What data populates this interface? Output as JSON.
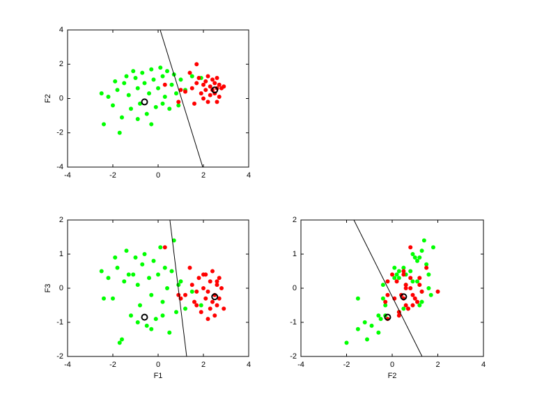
{
  "chart_data": [
    {
      "type": "scatter",
      "ylabel": "F2",
      "xlim": [
        -4,
        4
      ],
      "ylim": [
        -4,
        4
      ],
      "xticks": [
        -4,
        -2,
        0,
        2,
        4
      ],
      "yticks": [
        -4,
        -2,
        0,
        2,
        4
      ],
      "series": [
        {
          "color": "#00ff00",
          "marker": "dot",
          "x": [
            -2.5,
            -2.2,
            -2.0,
            -1.8,
            -1.6,
            -1.5,
            -1.3,
            -1.2,
            -1.0,
            -0.9,
            -0.8,
            -0.7,
            -0.6,
            -0.5,
            -0.4,
            -0.3,
            -0.2,
            -0.1,
            0.0,
            0.1,
            0.2,
            0.3,
            0.4,
            0.5,
            0.6,
            0.7,
            0.8,
            1.0,
            1.2,
            1.5,
            -2.4,
            -1.7,
            -1.1,
            -0.3,
            0.2,
            -1.9,
            -0.9,
            0.9,
            1.9,
            -1.4
          ],
          "values": [
            0.3,
            0.1,
            -0.4,
            0.5,
            -1.1,
            0.9,
            0.2,
            -0.6,
            1.2,
            0.6,
            -0.3,
            1.5,
            0.9,
            -0.9,
            0.3,
            1.7,
            1.1,
            -0.5,
            0.6,
            1.8,
            1.3,
            0.1,
            1.6,
            -0.6,
            0.8,
            1.4,
            0.3,
            1.1,
            0.5,
            1.3,
            -1.5,
            -2.0,
            1.6,
            -1.5,
            -0.3,
            1.0,
            -1.2,
            -0.4,
            1.2,
            1.3
          ]
        },
        {
          "color": "#ff0000",
          "marker": "dot",
          "x": [
            1.2,
            1.5,
            1.7,
            1.8,
            1.9,
            2.0,
            2.1,
            2.1,
            2.2,
            2.3,
            2.3,
            2.4,
            2.4,
            2.5,
            2.5,
            2.6,
            2.6,
            2.7,
            2.7,
            2.8,
            2.2,
            1.6,
            2.6,
            1.4,
            1.7,
            1.0,
            0.3,
            0.9,
            2.0,
            2.9
          ],
          "values": [
            0.4,
            0.6,
            0.9,
            1.2,
            0.3,
            0.8,
            1.0,
            0.5,
            1.3,
            0.7,
            0.2,
            1.1,
            0.5,
            0.9,
            0.3,
            1.2,
            0.6,
            0.8,
            0.1,
            0.6,
            -0.2,
            -0.3,
            -0.2,
            1.5,
            2.0,
            0.5,
            0.8,
            -0.2,
            0.0,
            0.7
          ]
        },
        {
          "color": "#000000",
          "marker": "line",
          "x": [
            0.09,
            1.97
          ],
          "values": [
            4,
            -4
          ]
        },
        {
          "color": "#000000",
          "marker": "circle",
          "x": [
            -0.6,
            2.5
          ],
          "values": [
            -0.2,
            0.5
          ]
        }
      ]
    },
    {
      "type": "scatter",
      "xlabel": "F1",
      "ylabel": "F3",
      "xlim": [
        -4,
        4
      ],
      "ylim": [
        -2,
        2
      ],
      "xticks": [
        -4,
        -2,
        0,
        2,
        4
      ],
      "yticks": [
        -2,
        -1,
        0,
        1,
        2
      ],
      "series": [
        {
          "color": "#00ff00",
          "marker": "dot",
          "x": [
            -2.5,
            -2.2,
            -2.0,
            -1.8,
            -1.6,
            -1.5,
            -1.3,
            -1.2,
            -1.0,
            -0.9,
            -0.8,
            -0.7,
            -0.6,
            -0.5,
            -0.4,
            -0.3,
            -0.2,
            -0.1,
            0.0,
            0.1,
            0.2,
            0.3,
            0.4,
            0.5,
            0.6,
            0.7,
            0.8,
            1.0,
            1.2,
            1.5,
            -2.4,
            -1.7,
            -1.1,
            -0.3,
            0.2,
            -1.9,
            -0.9,
            0.9,
            1.9,
            -1.4
          ],
          "values": [
            0.5,
            0.3,
            -0.3,
            0.6,
            -1.5,
            0.2,
            0.4,
            -0.8,
            0.9,
            0.1,
            -0.5,
            0.7,
            1.0,
            -1.1,
            0.3,
            -0.2,
            0.8,
            -0.9,
            0.4,
            1.2,
            -0.4,
            0.6,
            0.0,
            -1.3,
            0.5,
            1.4,
            -0.7,
            0.2,
            -0.6,
            -0.1,
            -0.3,
            -1.6,
            0.4,
            -1.2,
            -0.8,
            0.9,
            -1.0,
            0.1,
            -0.5,
            1.1
          ]
        },
        {
          "color": "#ff0000",
          "marker": "dot",
          "x": [
            1.2,
            1.5,
            1.7,
            1.8,
            1.9,
            2.0,
            2.1,
            2.1,
            2.2,
            2.3,
            2.3,
            2.4,
            2.4,
            2.5,
            2.5,
            2.6,
            2.6,
            2.7,
            2.7,
            2.8,
            2.2,
            1.6,
            2.6,
            1.4,
            1.7,
            1.0,
            0.3,
            0.9,
            2.0,
            2.9
          ],
          "values": [
            -0.2,
            0.1,
            -0.5,
            0.3,
            -0.7,
            0.0,
            -0.3,
            0.4,
            -0.1,
            -0.6,
            0.2,
            -0.4,
            0.5,
            -0.2,
            -0.8,
            0.1,
            -0.5,
            0.3,
            -0.3,
            0.0,
            -0.9,
            -0.4,
            0.2,
            0.6,
            -0.1,
            -0.3,
            1.2,
            -0.2,
            0.4,
            -0.6
          ]
        },
        {
          "color": "#000000",
          "marker": "line",
          "x": [
            0.52,
            1.26
          ],
          "values": [
            2,
            -2
          ]
        },
        {
          "color": "#000000",
          "marker": "circle",
          "x": [
            -0.6,
            2.5
          ],
          "values": [
            -0.85,
            -0.25
          ]
        }
      ]
    },
    {
      "type": "scatter",
      "xlabel": "F2",
      "xlim": [
        -4,
        4
      ],
      "ylim": [
        -2,
        2
      ],
      "xticks": [
        -4,
        -2,
        0,
        2,
        4
      ],
      "yticks": [
        -2,
        -1,
        0,
        1,
        2
      ],
      "series": [
        {
          "color": "#00ff00",
          "marker": "dot",
          "x": [
            0.3,
            0.1,
            -0.4,
            0.5,
            -1.1,
            0.9,
            0.2,
            -0.6,
            1.2,
            0.6,
            -0.3,
            1.5,
            0.9,
            -0.9,
            0.3,
            1.7,
            1.1,
            -0.5,
            0.6,
            1.8,
            1.3,
            0.1,
            1.6,
            -0.6,
            0.8,
            1.4,
            0.3,
            1.1,
            0.5,
            1.3,
            -1.5,
            -2.0,
            1.6,
            -1.5,
            -0.3,
            1.0,
            -1.2,
            -0.4,
            1.2,
            1.3
          ],
          "values": [
            0.5,
            0.3,
            -0.3,
            0.6,
            -1.5,
            0.2,
            0.4,
            -0.8,
            0.9,
            0.1,
            -0.5,
            0.7,
            1.0,
            -1.1,
            0.3,
            -0.2,
            0.8,
            -0.9,
            0.4,
            1.2,
            -0.4,
            0.6,
            0.0,
            -1.3,
            0.5,
            1.4,
            -0.7,
            0.2,
            -0.6,
            -0.1,
            -0.3,
            -1.6,
            0.4,
            -1.2,
            -0.8,
            0.9,
            -1.0,
            0.1,
            -0.5,
            1.1
          ]
        },
        {
          "color": "#ff0000",
          "marker": "dot",
          "x": [
            0.4,
            0.6,
            0.9,
            1.2,
            0.3,
            0.8,
            1.0,
            0.5,
            1.3,
            0.7,
            0.2,
            1.1,
            0.5,
            0.9,
            0.3,
            1.2,
            0.6,
            0.8,
            0.1,
            0.6,
            -0.2,
            -0.3,
            -0.2,
            1.5,
            2.0,
            0.5,
            0.8,
            -0.2,
            0.0,
            0.7
          ],
          "values": [
            -0.2,
            0.1,
            -0.5,
            0.3,
            -0.7,
            0.0,
            -0.3,
            0.4,
            -0.1,
            -0.6,
            0.2,
            -0.4,
            0.5,
            -0.2,
            -0.8,
            0.1,
            -0.5,
            0.3,
            -0.3,
            0.0,
            -0.9,
            -0.4,
            0.2,
            0.6,
            -0.1,
            -0.3,
            1.2,
            -0.2,
            0.4,
            -0.6
          ]
        },
        {
          "color": "#000000",
          "marker": "line",
          "x": [
            -1.68,
            1.31
          ],
          "values": [
            2,
            -2
          ]
        },
        {
          "color": "#000000",
          "marker": "circle",
          "x": [
            -0.2,
            0.5
          ],
          "values": [
            -0.85,
            -0.25
          ]
        }
      ]
    }
  ]
}
